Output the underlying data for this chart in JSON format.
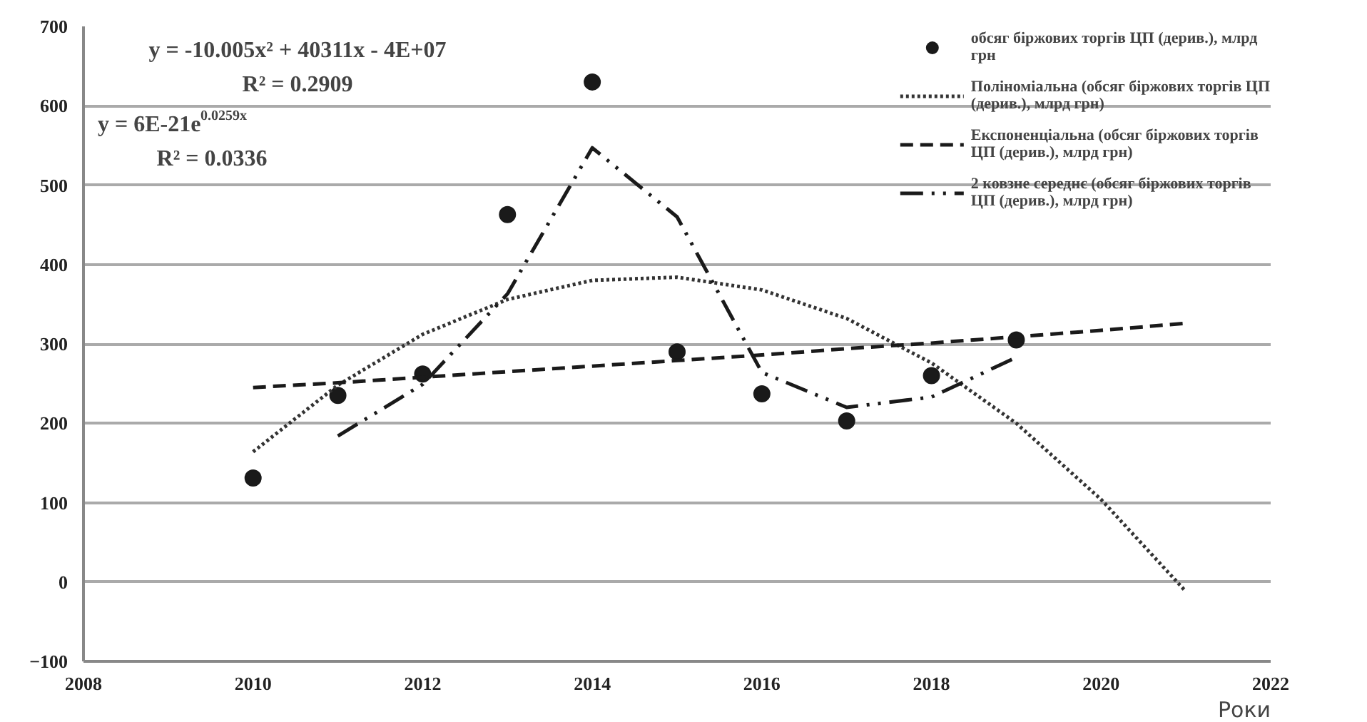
{
  "chart_data": {
    "type": "scatter",
    "xlabel": "Роки",
    "xlim": [
      2008,
      2022
    ],
    "xticks": [
      2008,
      2010,
      2012,
      2014,
      2016,
      2018,
      2020,
      2022
    ],
    "ylim": [
      -100,
      700
    ],
    "yticks": [
      -100,
      0,
      100,
      200,
      300,
      400,
      500,
      600,
      700
    ],
    "grid": "y",
    "legend": "top right",
    "marker": "circle",
    "series": [
      {
        "name": "обсяг біржових торгів ЦП (дерив.), млрд грн",
        "color": "#1a1a1a",
        "x": [
          2010,
          2011,
          2012,
          2013,
          2014,
          2015,
          2016,
          2017,
          2018,
          2019
        ],
        "values": [
          131,
          235,
          262,
          463,
          630,
          290,
          237,
          203,
          260,
          305
        ]
      },
      {
        "name": "Поліноміальна (обсяг біржових торгів ЦП (дерив.), млрд грн)",
        "type": "line",
        "line_style": "dotted",
        "marker": "none",
        "color": "#333333",
        "x": [
          2010,
          2011,
          2012,
          2013,
          2014,
          2015,
          2016,
          2017,
          2018,
          2019,
          2020,
          2021
        ],
        "values": [
          164,
          248,
          312,
          356,
          380,
          384,
          368,
          332,
          276,
          200,
          104,
          -12
        ]
      },
      {
        "name": "Експоненціальна (обсяг біржових торгів ЦП (дерив.), млрд грн)",
        "type": "line",
        "line_style": "dashed",
        "marker": "none",
        "color": "#1a1a1a",
        "x": [
          2010,
          2011,
          2012,
          2013,
          2014,
          2015,
          2016,
          2017,
          2018,
          2019,
          2020,
          2021
        ],
        "values": [
          245,
          251,
          258,
          265,
          272,
          279,
          286,
          294,
          301,
          309,
          317,
          326
        ]
      },
      {
        "name": "2 ковзне середнє (обсяг біржових торгів ЦП (дерив.), млрд грн)",
        "type": "line",
        "line_style": "dashdot",
        "marker": "none",
        "color": "#1a1a1a",
        "x": [
          2011,
          2012,
          2013,
          2014,
          2015,
          2016,
          2017,
          2018,
          2019
        ],
        "values": [
          184,
          249,
          363,
          547,
          460,
          264,
          220,
          233,
          283
        ]
      }
    ],
    "annotations": [
      "y = -10.005x² + 40311x - 4E+07",
      "R² = 0.2909",
      "y = 6E-21e$^{0.0259x}$",
      "R² = 0.0336"
    ]
  }
}
